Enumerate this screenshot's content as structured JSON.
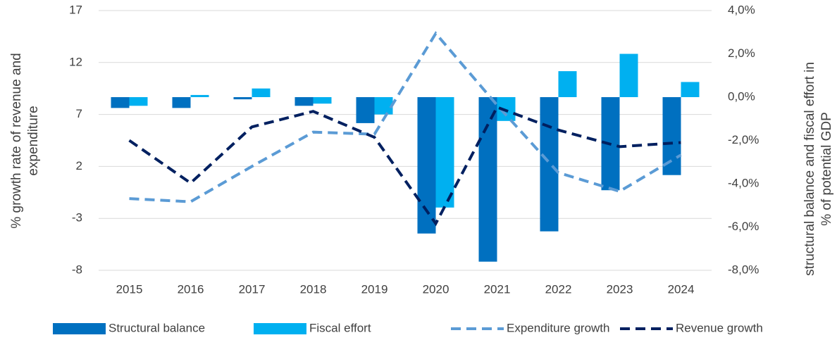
{
  "chart_data": {
    "type": "bar-line",
    "categories": [
      "2015",
      "2016",
      "2017",
      "2018",
      "2019",
      "2020",
      "2021",
      "2022",
      "2023",
      "2024"
    ],
    "series": [
      {
        "name": "Structural balance",
        "type": "bar",
        "axis": "y2",
        "color": "#0070c0",
        "values": [
          -0.5,
          -0.5,
          -0.1,
          -0.4,
          -1.2,
          -6.3,
          -7.6,
          -6.2,
          -4.3,
          -3.6
        ]
      },
      {
        "name": "Fiscal effort",
        "type": "bar",
        "axis": "y2",
        "color": "#00b0f0",
        "values": [
          -0.4,
          0.1,
          0.4,
          -0.3,
          -0.8,
          -5.1,
          -1.1,
          1.2,
          2.0,
          0.7
        ]
      },
      {
        "name": "Expenditure growth",
        "type": "line",
        "axis": "y",
        "color": "#5b9bd5",
        "values": [
          -1.1,
          -1.4,
          2.0,
          5.3,
          5.1,
          14.8,
          7.9,
          1.4,
          -0.4,
          3.1
        ]
      },
      {
        "name": "Revenue growth",
        "type": "line",
        "axis": "y",
        "color": "#002060",
        "values": [
          4.5,
          0.4,
          5.8,
          7.3,
          4.8,
          -3.5,
          7.7,
          5.5,
          3.9,
          4.3
        ]
      }
    ],
    "ylabel": [
      "% growth rate of revenue and",
      "expenditure"
    ],
    "y2label": [
      "structural balance and fiscal effort in",
      "% of potential GDP"
    ],
    "ylim": [
      -8,
      17
    ],
    "yticks": [
      -8,
      -3,
      2,
      7,
      12,
      17
    ],
    "y2lim": [
      -8,
      4
    ],
    "y2ticks": [
      {
        "value": -8,
        "label": "-8,0%"
      },
      {
        "value": -6,
        "label": "-6,0%"
      },
      {
        "value": -4,
        "label": "-4,0%"
      },
      {
        "value": -2,
        "label": "-2,0%"
      },
      {
        "value": 0,
        "label": "0,0%"
      },
      {
        "value": 2,
        "label": "2,0%"
      },
      {
        "value": 4,
        "label": "4,0%"
      }
    ],
    "grid": true,
    "legend": "bottom"
  }
}
